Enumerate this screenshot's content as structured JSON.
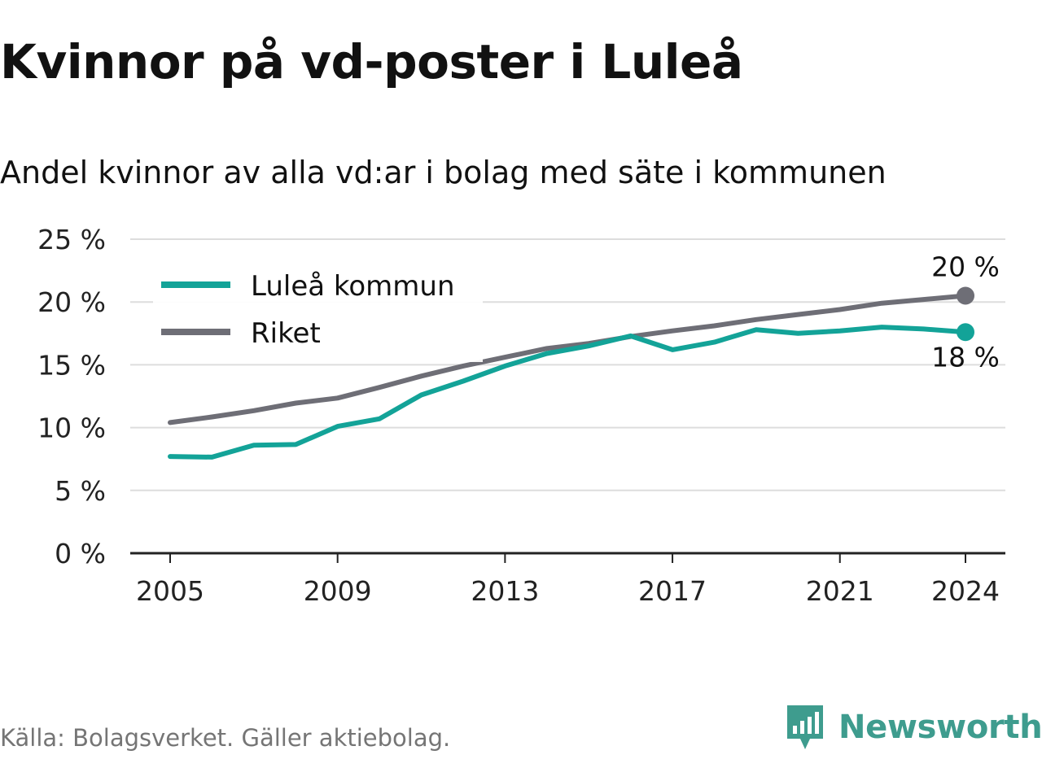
{
  "title": "Kvinnor på vd-poster i Luleå",
  "subtitle": "Andel kvinnor av alla vd:ar i bolag med säte i kommunen",
  "source": "Källa: Bolagsverket. Gäller aktiebolag.",
  "brand": {
    "name": "Newsworthy",
    "icon": "newsworthy-logo-icon"
  },
  "colors": {
    "lulea": "#13a398",
    "riket": "#6e6e76",
    "grid": "#dddddd",
    "axis": "#222222"
  },
  "chart_data": {
    "type": "line",
    "title": "Kvinnor på vd-poster i Luleå",
    "subtitle": "Andel kvinnor av alla vd:ar i bolag med säte i kommunen",
    "x": [
      2005,
      2006,
      2007,
      2008,
      2009,
      2010,
      2011,
      2012,
      2013,
      2014,
      2015,
      2016,
      2017,
      2018,
      2019,
      2020,
      2021,
      2022,
      2023,
      2024
    ],
    "x_ticks": [
      "2005",
      "2009",
      "2013",
      "2017",
      "2021",
      "2024"
    ],
    "y_ticks": [
      "0 %",
      "5 %",
      "10 %",
      "15 %",
      "20 %",
      "25 %"
    ],
    "ylim": [
      0,
      25
    ],
    "grid": true,
    "legend": "top-left",
    "series": [
      {
        "name": "Luleå kommun",
        "color": "#13a398",
        "values": [
          7.7,
          7.65,
          8.6,
          8.65,
          10.1,
          10.7,
          12.6,
          13.7,
          14.9,
          15.9,
          16.5,
          17.3,
          16.2,
          16.8,
          17.8,
          17.5,
          17.7,
          18.0,
          17.85,
          17.6
        ],
        "end_label": "18 %"
      },
      {
        "name": "Riket",
        "color": "#6e6e76",
        "values": [
          10.4,
          10.85,
          11.35,
          11.95,
          12.35,
          13.2,
          14.1,
          14.9,
          15.6,
          16.3,
          16.7,
          17.25,
          17.7,
          18.1,
          18.6,
          19.0,
          19.4,
          19.9,
          20.2,
          20.5
        ],
        "end_label": "20 %"
      }
    ]
  }
}
